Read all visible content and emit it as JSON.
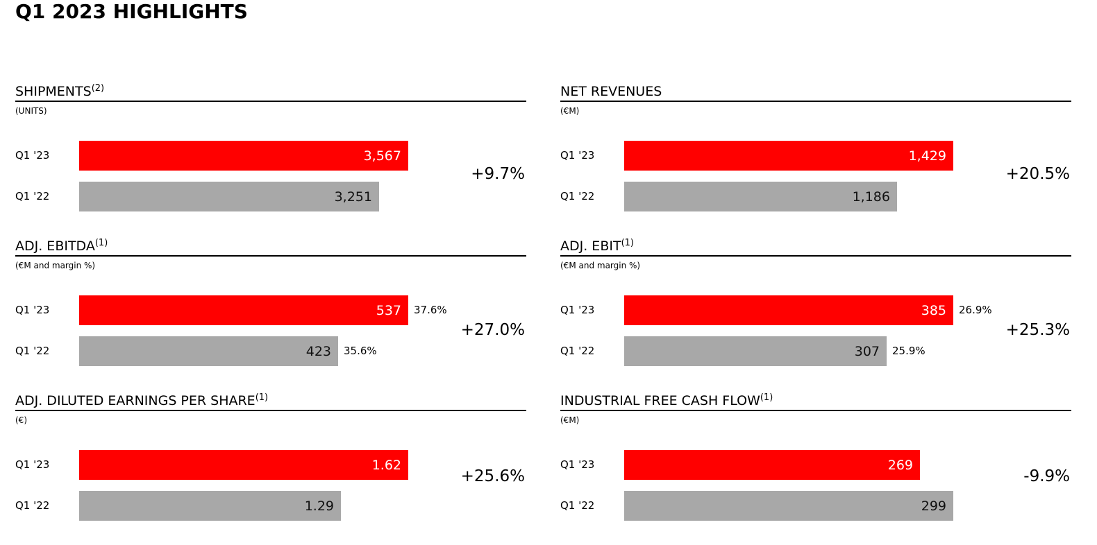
{
  "page": {
    "title": "Q1 2023 HIGHLIGHTS"
  },
  "colors": {
    "current": "#ff0000",
    "prior": "#a8a8a8"
  },
  "scale_max": 590,
  "chart_data": [
    {
      "type": "bar",
      "title": "SHIPMENTS",
      "footnote": "(2)",
      "unit": "(UNITS)",
      "categories": [
        "Q1 '23",
        "Q1 '22"
      ],
      "values": [
        3567,
        3251
      ],
      "value_labels": [
        "3,567",
        "3,251"
      ],
      "margins": [],
      "change": "+9.7%"
    },
    {
      "type": "bar",
      "title": "NET REVENUES",
      "footnote": "",
      "unit": "(€M)",
      "categories": [
        "Q1 '23",
        "Q1 '22"
      ],
      "values": [
        1429,
        1186
      ],
      "value_labels": [
        "1,429",
        "1,186"
      ],
      "margins": [],
      "change": "+20.5%"
    },
    {
      "type": "bar",
      "title": "ADJ. EBITDA",
      "footnote": "(1)",
      "unit": "(€M and margin %)",
      "categories": [
        "Q1 '23",
        "Q1 '22"
      ],
      "values": [
        537,
        423
      ],
      "value_labels": [
        "537",
        "423"
      ],
      "margins": [
        "37.6%",
        "35.6%"
      ],
      "change": "+27.0%"
    },
    {
      "type": "bar",
      "title": "ADJ. EBIT",
      "footnote": "(1)",
      "unit": "(€M and margin %)",
      "categories": [
        "Q1 '23",
        "Q1 '22"
      ],
      "values": [
        385,
        307
      ],
      "value_labels": [
        "385",
        "307"
      ],
      "margins": [
        "26.9%",
        "25.9%"
      ],
      "change": "+25.3%"
    },
    {
      "type": "bar",
      "title": "ADJ. DILUTED EARNINGS PER SHARE",
      "footnote": "(1)",
      "unit": "(€)",
      "categories": [
        "Q1 '23",
        "Q1 '22"
      ],
      "values": [
        1.62,
        1.29
      ],
      "value_labels": [
        "1.62",
        "1.29"
      ],
      "margins": [],
      "change": "+25.6%"
    },
    {
      "type": "bar",
      "title": "INDUSTRIAL FREE CASH FLOW",
      "footnote": "(1)",
      "unit": "(€M)",
      "categories": [
        "Q1 '23",
        "Q1 '22"
      ],
      "values": [
        269,
        299
      ],
      "value_labels": [
        "269",
        "299"
      ],
      "margins": [],
      "change": "-9.9%"
    }
  ]
}
